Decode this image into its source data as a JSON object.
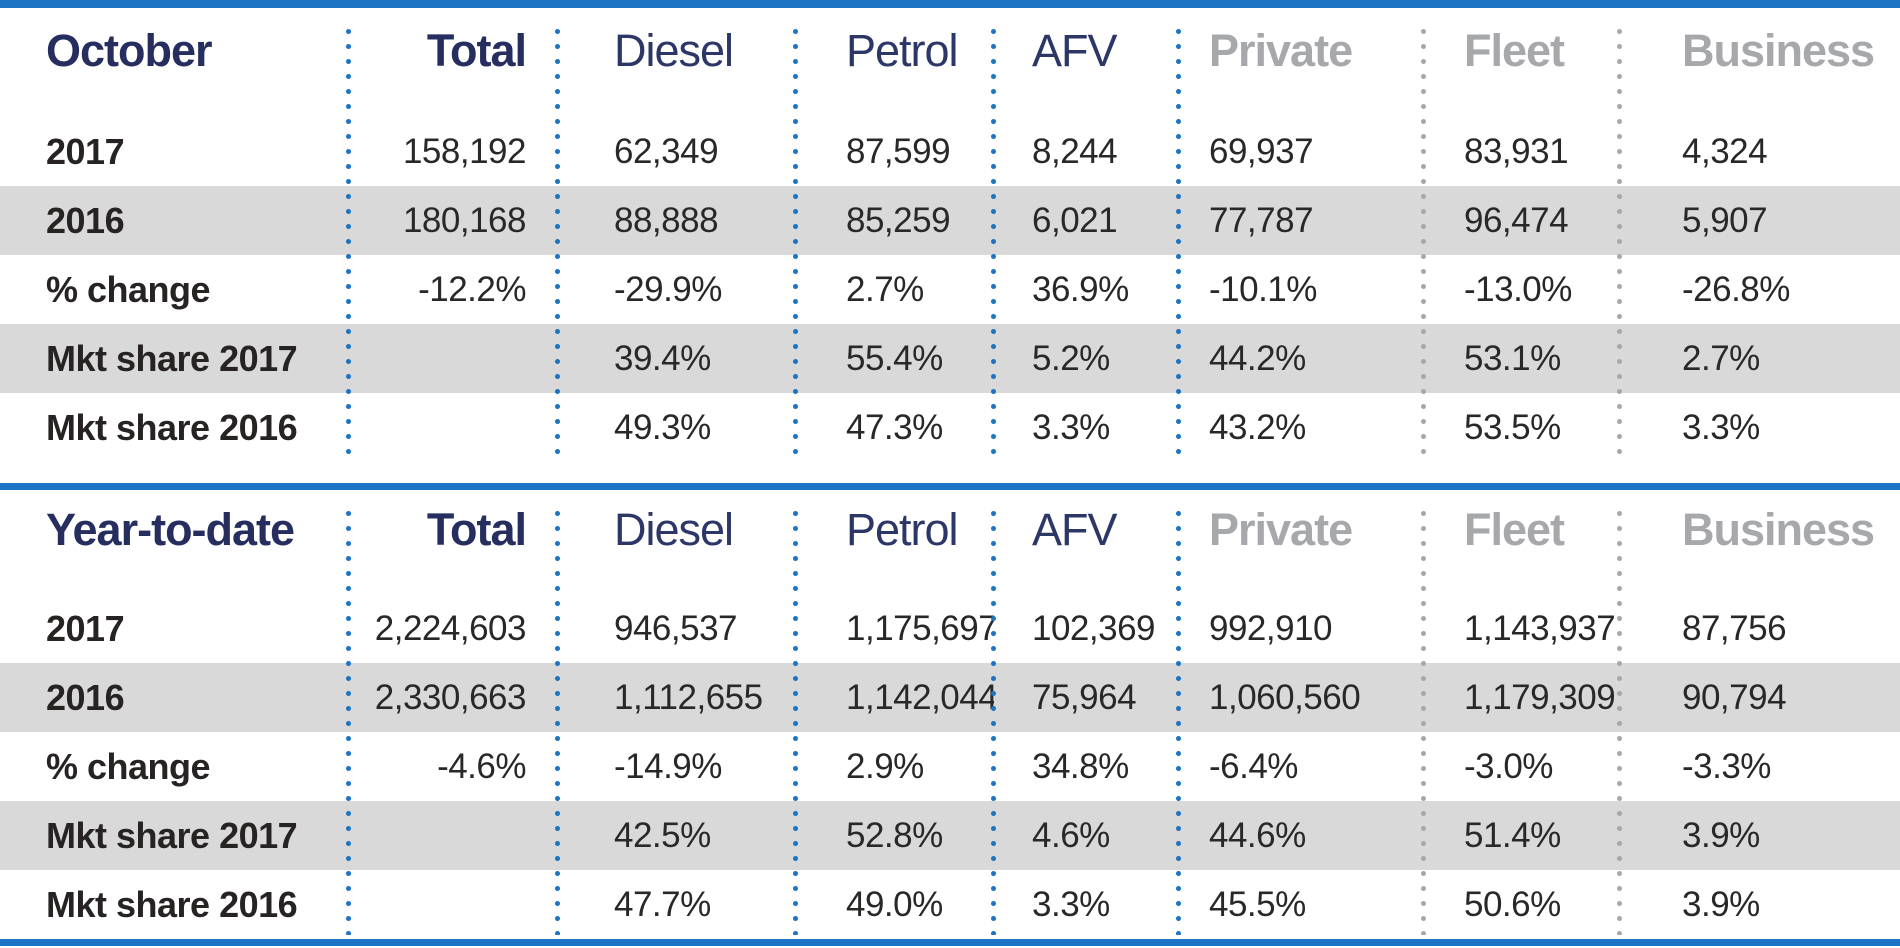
{
  "colors": {
    "line_blue": "#1d73c4",
    "navy_header": "#262e5f",
    "navy_header_light": "#2c3767",
    "gray_header": "#a6a8ab",
    "stripe_gray": "#d9d9d9",
    "text_dark": "#262322"
  },
  "tables": [
    {
      "title": "October",
      "columns": [
        "Total",
        "Diesel",
        "Petrol",
        "AFV",
        "Private",
        "Fleet",
        "Business"
      ],
      "rows": [
        {
          "label": "2017",
          "values": [
            "158,192",
            "62,349",
            "87,599",
            "8,244",
            "69,937",
            "83,931",
            "4,324"
          ]
        },
        {
          "label": "2016",
          "values": [
            "180,168",
            "88,888",
            "85,259",
            "6,021",
            "77,787",
            "96,474",
            "5,907"
          ]
        },
        {
          "label": "% change",
          "values": [
            "-12.2%",
            "-29.9%",
            "2.7%",
            "36.9%",
            "-10.1%",
            "-13.0%",
            "-26.8%"
          ]
        },
        {
          "label": "Mkt share 2017",
          "values": [
            "",
            "39.4%",
            "55.4%",
            "5.2%",
            "44.2%",
            "53.1%",
            "2.7%"
          ]
        },
        {
          "label": "Mkt share 2016",
          "values": [
            "",
            "49.3%",
            "47.3%",
            "3.3%",
            "43.2%",
            "53.5%",
            "3.3%"
          ]
        }
      ]
    },
    {
      "title": "Year-to-date",
      "columns": [
        "Total",
        "Diesel",
        "Petrol",
        "AFV",
        "Private",
        "Fleet",
        "Business"
      ],
      "rows": [
        {
          "label": "2017",
          "values": [
            "2,224,603",
            "946,537",
            "1,175,697",
            "102,369",
            "992,910",
            "1,143,937",
            "87,756"
          ]
        },
        {
          "label": "2016",
          "values": [
            "2,330,663",
            "1,112,655",
            "1,142,044",
            "75,964",
            "1,060,560",
            "1,179,309",
            "90,794"
          ]
        },
        {
          "label": "% change",
          "values": [
            "-4.6%",
            "-14.9%",
            "2.9%",
            "34.8%",
            "-6.4%",
            "-3.0%",
            "-3.3%"
          ]
        },
        {
          "label": "Mkt share 2017",
          "values": [
            "",
            "42.5%",
            "52.8%",
            "4.6%",
            "44.6%",
            "51.4%",
            "3.9%"
          ]
        },
        {
          "label": "Mkt share 2016",
          "values": [
            "",
            "47.7%",
            "49.0%",
            "3.3%",
            "45.5%",
            "50.6%",
            "3.9%"
          ]
        }
      ]
    }
  ],
  "chart_data": [
    {
      "type": "table",
      "title": "October",
      "columns": [
        "",
        "Total",
        "Diesel",
        "Petrol",
        "AFV",
        "Private",
        "Fleet",
        "Business"
      ],
      "rows": [
        [
          "2017",
          "158,192",
          "62,349",
          "87,599",
          "8,244",
          "69,937",
          "83,931",
          "4,324"
        ],
        [
          "2016",
          "180,168",
          "88,888",
          "85,259",
          "6,021",
          "77,787",
          "96,474",
          "5,907"
        ],
        [
          "% change",
          "-12.2%",
          "-29.9%",
          "2.7%",
          "36.9%",
          "-10.1%",
          "-13.0%",
          "-26.8%"
        ],
        [
          "Mkt share 2017",
          "",
          "39.4%",
          "55.4%",
          "5.2%",
          "44.2%",
          "53.1%",
          "2.7%"
        ],
        [
          "Mkt share 2016",
          "",
          "49.3%",
          "47.3%",
          "3.3%",
          "43.2%",
          "53.5%",
          "3.3%"
        ]
      ]
    },
    {
      "type": "table",
      "title": "Year-to-date",
      "columns": [
        "",
        "Total",
        "Diesel",
        "Petrol",
        "AFV",
        "Private",
        "Fleet",
        "Business"
      ],
      "rows": [
        [
          "2017",
          "2,224,603",
          "946,537",
          "1,175,697",
          "102,369",
          "992,910",
          "1,143,937",
          "87,756"
        ],
        [
          "2016",
          "2,330,663",
          "1,112,655",
          "1,142,044",
          "75,964",
          "1,060,560",
          "1,179,309",
          "90,794"
        ],
        [
          "% change",
          "-4.6%",
          "-14.9%",
          "2.9%",
          "34.8%",
          "-6.4%",
          "-3.0%",
          "-3.3%"
        ],
        [
          "Mkt share 2017",
          "",
          "42.5%",
          "52.8%",
          "4.6%",
          "44.6%",
          "51.4%",
          "3.9%"
        ],
        [
          "Mkt share 2016",
          "",
          "47.7%",
          "49.0%",
          "3.3%",
          "45.5%",
          "50.6%",
          "3.9%"
        ]
      ]
    }
  ]
}
